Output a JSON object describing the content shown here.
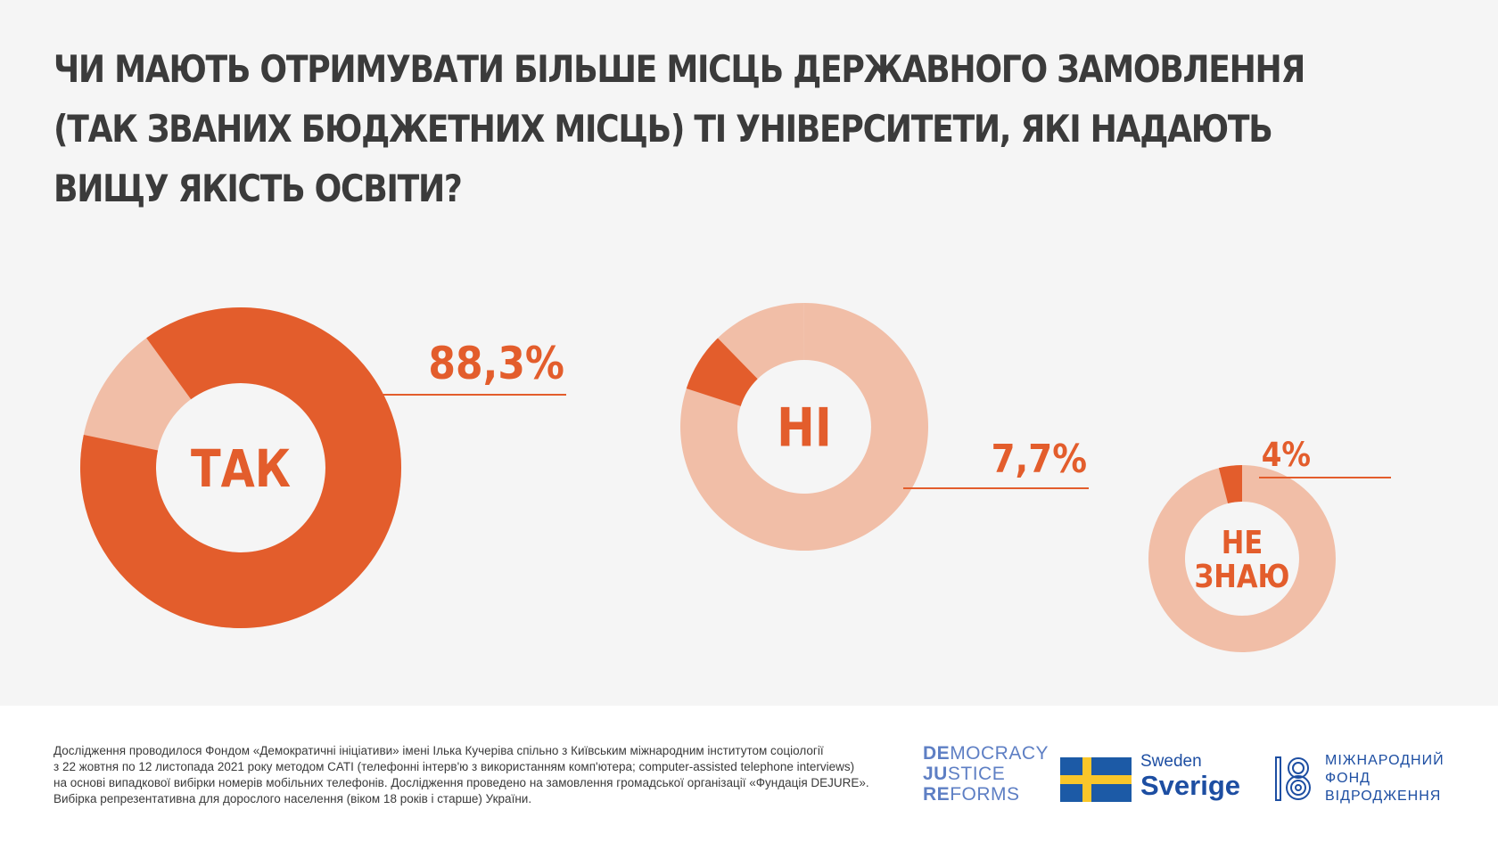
{
  "title_lines": [
    "ЧИ МАЮТЬ ОТРИМУВАТИ БІЛЬШЕ МІСЦЬ ДЕРЖАВНОГО ЗАМОВЛЕННЯ",
    "(ТАК ЗВАНИХ БЮДЖЕТНИХ МІСЦЬ) ТІ УНІВЕРСИТЕТИ, ЯКІ НАДАЮТЬ",
    "ВИЩУ ЯКІСТЬ ОСВІТИ?"
  ],
  "colors": {
    "accent": "#e35d2c",
    "light": "#f1bea7",
    "background": "#f5f5f5",
    "title": "#3b3b3b",
    "brand_blue": "#1d4ea2",
    "flag_blue": "#1c5aa6",
    "flag_yellow": "#f9c62a"
  },
  "chart_data": {
    "type": "pie",
    "style": "donut",
    "series": [
      {
        "name": "ТАК",
        "label_lines": [
          "ТАК"
        ],
        "value": 88.3,
        "value_label": "88,3%"
      },
      {
        "name": "НІ",
        "label_lines": [
          "НІ"
        ],
        "value": 7.7,
        "value_label": "7,7%"
      },
      {
        "name": "НЕ ЗНАЮ",
        "label_lines": [
          "НЕ",
          "ЗНАЮ"
        ],
        "value": 4,
        "value_label": "4%"
      }
    ]
  },
  "footer": {
    "note_lines": [
      "Дослідження проводилося Фондом «Демократичні ініціативи» імені Ілька Кучеріва спільно з Київським міжнародним інститутом соціології",
      "з 22 жовтня по 12 листопада 2021 року методом CATI (телефонні інтерв'ю з використанням комп'ютера; computer-assisted telephone interviews)",
      "на основі випадкової вибірки номерів мобільних телефонів. Дослідження проведено на замовлення громадської організації «Фундація DEJURE».",
      "Вибірка репрезентативна для дорослого населення (віком 18 років і старше) України."
    ],
    "logos": {
      "djr": [
        {
          "bold": "DE",
          "rest": "MOCRACY"
        },
        {
          "bold": "JU",
          "rest": "STICE"
        },
        {
          "bold": "RE",
          "rest": "FORMS"
        }
      ],
      "sweden_small": "Sweden",
      "sweden_big": "Sverige",
      "irf_lines": [
        "МІЖНАРОДНИЙ",
        "ФОНД",
        "ВІДРОДЖЕННЯ"
      ]
    }
  }
}
